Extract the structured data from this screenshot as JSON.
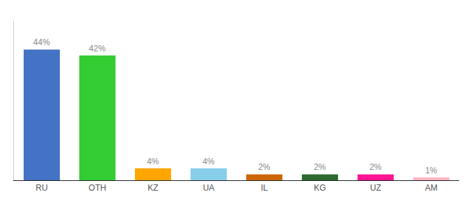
{
  "chart_data": {
    "type": "bar",
    "categories": [
      "RU",
      "OTH",
      "KZ",
      "UA",
      "IL",
      "KG",
      "UZ",
      "AM"
    ],
    "values": [
      44,
      42,
      4,
      4,
      2,
      2,
      2,
      1
    ],
    "value_labels": [
      "44%",
      "42%",
      "4%",
      "4%",
      "2%",
      "2%",
      "2%",
      "1%"
    ],
    "colors": [
      "#4472C4",
      "#33CC33",
      "#FFA500",
      "#87CEEB",
      "#CC6600",
      "#2D6A2D",
      "#FF1493",
      "#FFB6C1"
    ],
    "ylim": [
      0,
      53.68
    ],
    "data_labels": true,
    "tick_labels": "x",
    "grid": false
  }
}
